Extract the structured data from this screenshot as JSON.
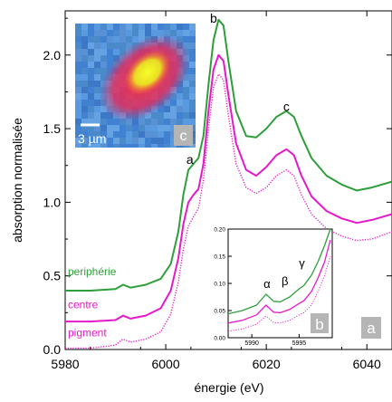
{
  "chart_data": [
    {
      "type": "line",
      "xlabel": "énergie (eV)",
      "ylabel": "absorption normalisée",
      "xlim": [
        5980,
        6045
      ],
      "ylim": [
        0.0,
        2.3
      ],
      "xticks": [
        5980,
        6000,
        6020,
        6040
      ],
      "yticks": [
        0.0,
        0.5,
        1.0,
        1.5,
        2.0
      ],
      "xtick_labels": [
        "5980",
        "6000",
        "6020",
        "6040"
      ],
      "ytick_labels": [
        "0.0",
        "0.5",
        "1.0",
        "1.5",
        "2.0"
      ],
      "panel_label": "a",
      "peak_labels": [
        {
          "text": "a",
          "x": 6004.8,
          "y": 1.26
        },
        {
          "text": "b",
          "x": 6009.5,
          "y": 2.22
        },
        {
          "text": "c",
          "x": 6024.0,
          "y": 1.62
        }
      ],
      "series": [
        {
          "name": "periphérie",
          "color": "#2e9e3a",
          "style": "solid",
          "label_y": 0.505,
          "points": [
            [
              5980,
              0.4
            ],
            [
              5985,
              0.4
            ],
            [
              5990,
              0.41
            ],
            [
              5991.5,
              0.44
            ],
            [
              5993,
              0.42
            ],
            [
              5996,
              0.44
            ],
            [
              5999,
              0.48
            ],
            [
              6001,
              0.58
            ],
            [
              6002.5,
              0.8
            ],
            [
              6003.5,
              1.05
            ],
            [
              6004.5,
              1.22
            ],
            [
              6005.5,
              1.26
            ],
            [
              6006.5,
              1.3
            ],
            [
              6007.5,
              1.45
            ],
            [
              6008.5,
              1.8
            ],
            [
              6009.5,
              2.1
            ],
            [
              6010.5,
              2.24
            ],
            [
              6011.5,
              2.2
            ],
            [
              6012.5,
              1.95
            ],
            [
              6014,
              1.62
            ],
            [
              6016,
              1.45
            ],
            [
              6018,
              1.44
            ],
            [
              6020,
              1.5
            ],
            [
              6022,
              1.58
            ],
            [
              6024,
              1.62
            ],
            [
              6025.5,
              1.58
            ],
            [
              6027,
              1.45
            ],
            [
              6029,
              1.3
            ],
            [
              6032,
              1.18
            ],
            [
              6035,
              1.12
            ],
            [
              6038,
              1.08
            ],
            [
              6041,
              1.1
            ],
            [
              6045,
              1.14
            ]
          ]
        },
        {
          "name": "centre",
          "color": "#e619c8",
          "style": "solid",
          "label_y": 0.28,
          "points": [
            [
              5980,
              0.19
            ],
            [
              5985,
              0.19
            ],
            [
              5990,
              0.2
            ],
            [
              5991.5,
              0.23
            ],
            [
              5993,
              0.21
            ],
            [
              5996,
              0.23
            ],
            [
              5999,
              0.28
            ],
            [
              6001,
              0.4
            ],
            [
              6002.5,
              0.62
            ],
            [
              6003.5,
              0.85
            ],
            [
              6004.5,
              1.0
            ],
            [
              6005.5,
              1.05
            ],
            [
              6006.5,
              1.09
            ],
            [
              6007.5,
              1.26
            ],
            [
              6008.5,
              1.62
            ],
            [
              6009.5,
              1.9
            ],
            [
              6010.5,
              2.0
            ],
            [
              6011.5,
              1.96
            ],
            [
              6012.5,
              1.72
            ],
            [
              6014,
              1.4
            ],
            [
              6016,
              1.22
            ],
            [
              6018,
              1.18
            ],
            [
              6020,
              1.24
            ],
            [
              6022,
              1.32
            ],
            [
              6024,
              1.36
            ],
            [
              6025.5,
              1.32
            ],
            [
              6027,
              1.18
            ],
            [
              6029,
              1.04
            ],
            [
              6032,
              0.94
            ],
            [
              6035,
              0.89
            ],
            [
              6038,
              0.86
            ],
            [
              6041,
              0.88
            ],
            [
              6045,
              0.92
            ]
          ]
        },
        {
          "name": "pigment",
          "color": "#e619c8",
          "style": "dotted",
          "label_y": 0.09,
          "points": [
            [
              5980,
              0.01
            ],
            [
              5985,
              0.01
            ],
            [
              5988,
              0.02
            ],
            [
              5990,
              0.03
            ],
            [
              5991.5,
              0.07
            ],
            [
              5993,
              0.05
            ],
            [
              5996,
              0.07
            ],
            [
              5999,
              0.12
            ],
            [
              6001,
              0.24
            ],
            [
              6002.5,
              0.46
            ],
            [
              6003.5,
              0.68
            ],
            [
              6004.5,
              0.84
            ],
            [
              6005.5,
              0.9
            ],
            [
              6006.5,
              0.96
            ],
            [
              6007.5,
              1.15
            ],
            [
              6008.5,
              1.5
            ],
            [
              6009.5,
              1.78
            ],
            [
              6010.5,
              1.87
            ],
            [
              6011.5,
              1.83
            ],
            [
              6012.5,
              1.58
            ],
            [
              6014,
              1.26
            ],
            [
              6016,
              1.1
            ],
            [
              6018,
              1.06
            ],
            [
              6020,
              1.1
            ],
            [
              6022,
              1.18
            ],
            [
              6024,
              1.22
            ],
            [
              6025.5,
              1.18
            ],
            [
              6027,
              1.05
            ],
            [
              6029,
              0.92
            ],
            [
              6032,
              0.82
            ],
            [
              6035,
              0.77
            ],
            [
              6038,
              0.74
            ],
            [
              6041,
              0.75
            ],
            [
              6045,
              0.8
            ]
          ]
        }
      ]
    },
    {
      "type": "line",
      "panel_label": "b",
      "xlim": [
        5987.5,
        5998.5
      ],
      "ylim": [
        0.0,
        0.2
      ],
      "xticks": [
        5990,
        5995
      ],
      "yticks": [
        0.0,
        0.05,
        0.1,
        0.15,
        0.2
      ],
      "xtick_labels": [
        "5990",
        "5995"
      ],
      "ytick_labels": [
        "0.00",
        "0.05",
        "0.10",
        "0.15",
        "0.20"
      ],
      "peak_labels": [
        {
          "text": "α",
          "x": 5991.6,
          "y": 0.092
        },
        {
          "text": "β",
          "x": 5993.5,
          "y": 0.097
        },
        {
          "text": "γ",
          "x": 5995.3,
          "y": 0.13
        }
      ],
      "series": [
        {
          "name": "periphérie",
          "color": "#2e9e3a",
          "style": "solid",
          "points": [
            [
              5987.5,
              0.044
            ],
            [
              5989,
              0.05
            ],
            [
              5990.5,
              0.06
            ],
            [
              5991.5,
              0.08
            ],
            [
              5992.3,
              0.067
            ],
            [
              5993,
              0.066
            ],
            [
              5994,
              0.075
            ],
            [
              5995,
              0.09
            ],
            [
              5995.5,
              0.096
            ],
            [
              5996.3,
              0.115
            ],
            [
              5997,
              0.14
            ],
            [
              5997.7,
              0.17
            ],
            [
              5998.3,
              0.2
            ]
          ]
        },
        {
          "name": "centre",
          "color": "#e619c8",
          "style": "solid",
          "points": [
            [
              5987.5,
              0.027
            ],
            [
              5989,
              0.032
            ],
            [
              5990.5,
              0.042
            ],
            [
              5991.5,
              0.06
            ],
            [
              5992.3,
              0.047
            ],
            [
              5993,
              0.046
            ],
            [
              5994,
              0.052
            ],
            [
              5995,
              0.063
            ],
            [
              5995.5,
              0.068
            ],
            [
              5996.3,
              0.085
            ],
            [
              5997,
              0.11
            ],
            [
              5997.7,
              0.14
            ],
            [
              5998.3,
              0.18
            ]
          ]
        },
        {
          "name": "pigment",
          "color": "#e619c8",
          "style": "dotted",
          "points": [
            [
              5987.5,
              0.012
            ],
            [
              5989,
              0.016
            ],
            [
              5990.5,
              0.025
            ],
            [
              5991.5,
              0.04
            ],
            [
              5992.3,
              0.028
            ],
            [
              5993,
              0.027
            ],
            [
              5994,
              0.032
            ],
            [
              5995,
              0.042
            ],
            [
              5995.5,
              0.046
            ],
            [
              5996.3,
              0.06
            ],
            [
              5997,
              0.085
            ],
            [
              5997.7,
              0.115
            ],
            [
              5998.3,
              0.15
            ]
          ]
        }
      ]
    }
  ],
  "inset_image": {
    "panel_label": "c",
    "scale_bar_label": "3 µm"
  }
}
